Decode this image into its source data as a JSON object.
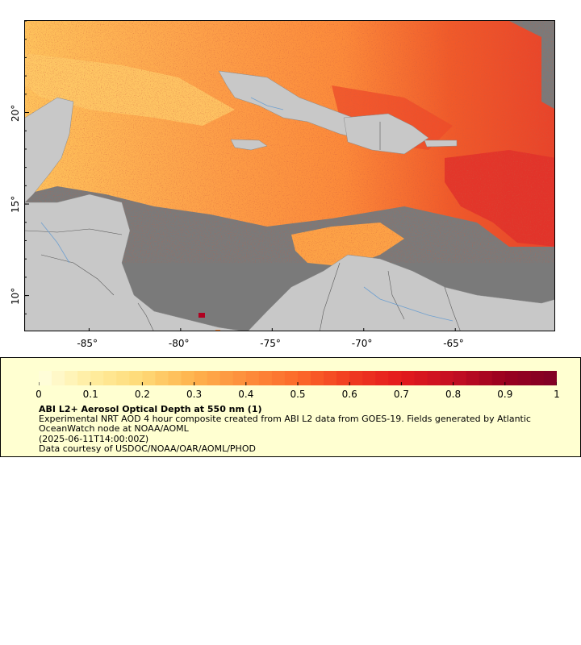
{
  "map": {
    "lon_range": [
      -88.5,
      -59.5
    ],
    "lat_range": [
      8.0,
      25.0
    ],
    "lon_ticks": [
      {
        "value": -85,
        "label": "-85°"
      },
      {
        "value": -80,
        "label": "-80°"
      },
      {
        "value": -75,
        "label": "-75°"
      },
      {
        "value": -70,
        "label": "-70°"
      },
      {
        "value": -65,
        "label": "-65°"
      }
    ],
    "lat_ticks": [
      {
        "value": 20,
        "label": "20°"
      },
      {
        "value": 15,
        "label": "15°"
      },
      {
        "value": 10,
        "label": "10°"
      }
    ],
    "colors": {
      "ocean_no_data": "#7a7a7a",
      "land": "#c8c8c8",
      "borders": "#5a5a5a",
      "rivers": "#6fa0d0"
    }
  },
  "colorbar": {
    "ticks": [
      "0",
      "0.1",
      "0.2",
      "0.3",
      "0.4",
      "0.5",
      "0.6",
      "0.7",
      "0.8",
      "0.9",
      "1"
    ],
    "colors": [
      "#ffffe0",
      "#ffeda0",
      "#fed976",
      "#feb24c",
      "#fd8d3c",
      "#fc6a2a",
      "#f03b20",
      "#e31a1c",
      "#c40f22",
      "#99001f",
      "#800026"
    ]
  },
  "legend": {
    "title": "ABI L2+ Aerosol Optical Depth at 550 nm (1)",
    "description": "Experimental NRT AOD 4 hour composite created from ABI L2 data from GOES-19. Fields generated by Atlantic OceanWatch node at NOAA/AOML",
    "time": "(2025-06-11T14:00:00Z)",
    "credit": "Data courtesy of USDOC/NOAA/OAR/AOML/PHOD"
  }
}
